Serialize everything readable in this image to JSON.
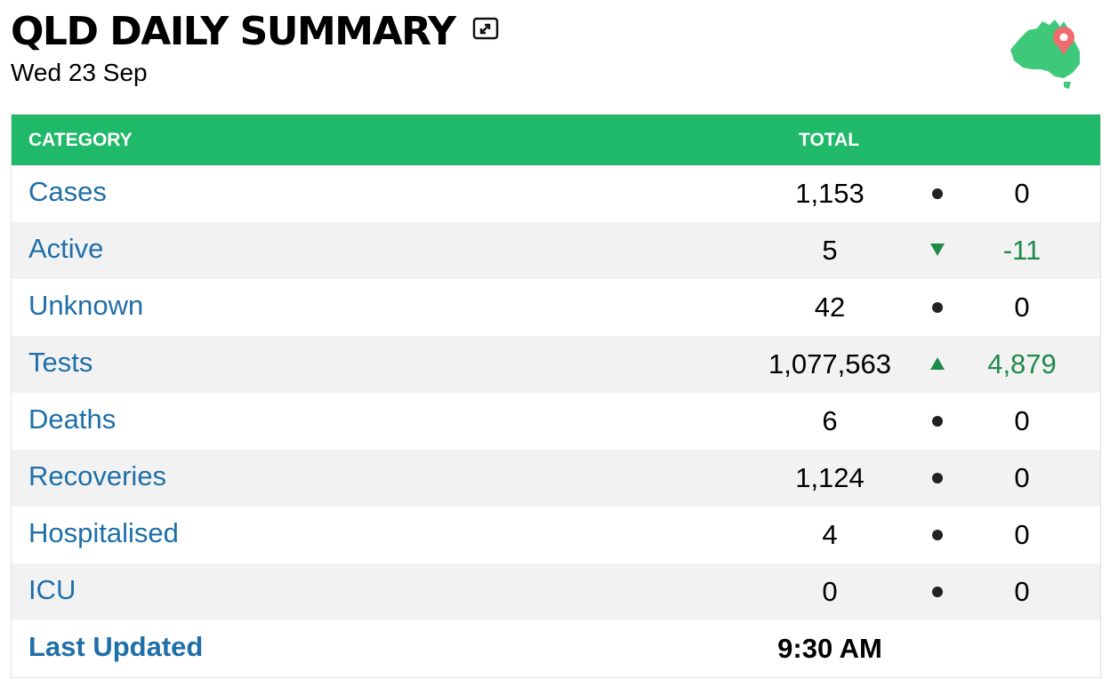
{
  "header": {
    "title": "QLD DAILY SUMMARY",
    "date": "Wed 23 Sep"
  },
  "icons": {
    "expand": "expand-icon",
    "map": "australia-map-pin-icon"
  },
  "colors": {
    "accent": "#20b96a",
    "link": "#1f6fa8",
    "positive": "#1e8a4a"
  },
  "table": {
    "headers": {
      "category": "CATEGORY",
      "total": "TOTAL"
    },
    "rows": [
      {
        "category": "Cases",
        "total": "1,153",
        "indicator": "none",
        "change": "0"
      },
      {
        "category": "Active",
        "total": "5",
        "indicator": "down",
        "change": "-11"
      },
      {
        "category": "Unknown",
        "total": "42",
        "indicator": "none",
        "change": "0"
      },
      {
        "category": "Tests",
        "total": "1,077,563",
        "indicator": "up",
        "change": "4,879"
      },
      {
        "category": "Deaths",
        "total": "6",
        "indicator": "none",
        "change": "0"
      },
      {
        "category": "Recoveries",
        "total": "1,124",
        "indicator": "none",
        "change": "0"
      },
      {
        "category": "Hospitalised",
        "total": "4",
        "indicator": "none",
        "change": "0"
      },
      {
        "category": "ICU",
        "total": "0",
        "indicator": "none",
        "change": "0"
      }
    ],
    "footer": {
      "label": "Last Updated",
      "value": "9:30 AM"
    }
  }
}
